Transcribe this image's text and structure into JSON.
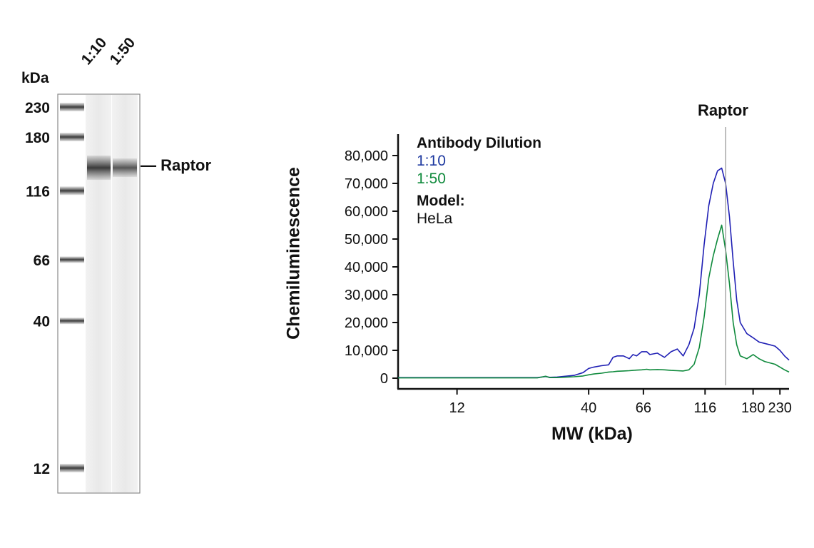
{
  "blot": {
    "kda_label": "kDa",
    "lane_labels": [
      "1:10",
      "1:50"
    ],
    "ladder": [
      {
        "label": "230",
        "kda": 230
      },
      {
        "label": "180",
        "kda": 180
      },
      {
        "label": "116",
        "kda": 116
      },
      {
        "label": "66",
        "kda": 66
      },
      {
        "label": "40",
        "kda": 40
      },
      {
        "label": "12",
        "kda": 12
      }
    ],
    "band_label": "— Raptor",
    "band_kda": 140,
    "colors": {
      "frame": "#888888",
      "band": "#444444"
    }
  },
  "chart_data": {
    "type": "line",
    "title": "",
    "xlabel": "MW (kDa)",
    "ylabel": "Chemiluminescence",
    "x_scale": "log",
    "xlim": [
      7,
      250
    ],
    "ylim": [
      0,
      80000
    ],
    "x_ticks": [
      {
        "label": "12",
        "value": 12
      },
      {
        "label": "40",
        "value": 40
      },
      {
        "label": "66",
        "value": 66
      },
      {
        "label": "116",
        "value": 116
      },
      {
        "label": "180",
        "value": 180
      },
      {
        "label": "230",
        "value": 230
      }
    ],
    "y_ticks": [
      {
        "label": "0",
        "value": 0
      },
      {
        "label": "10,000",
        "value": 10000
      },
      {
        "label": "20,000",
        "value": 20000
      },
      {
        "label": "30,000",
        "value": 30000
      },
      {
        "label": "40,000",
        "value": 40000
      },
      {
        "label": "50,000",
        "value": 50000
      },
      {
        "label": "60,000",
        "value": 60000
      },
      {
        "label": "70,000",
        "value": 70000
      },
      {
        "label": "80,000",
        "value": 80000
      }
    ],
    "marker": {
      "label": "Raptor",
      "x": 140
    },
    "legend": {
      "title": "Antibody Dilution",
      "model_title": "Model:",
      "model_value": "HeLa"
    },
    "series": [
      {
        "name": "1:10",
        "color": "#1f1fb4",
        "x": [
          7,
          10,
          15,
          20,
          25,
          27,
          28,
          30,
          35,
          38,
          40,
          42,
          45,
          48,
          50,
          52,
          55,
          58,
          60,
          62,
          65,
          68,
          70,
          75,
          80,
          85,
          90,
          95,
          100,
          105,
          110,
          115,
          120,
          125,
          130,
          135,
          140,
          145,
          150,
          155,
          160,
          170,
          180,
          190,
          200,
          210,
          220,
          230,
          240,
          250
        ],
        "y": [
          200,
          200,
          200,
          200,
          200,
          600,
          300,
          400,
          1000,
          2000,
          3500,
          4000,
          4500,
          4800,
          7500,
          8000,
          8000,
          7000,
          8500,
          8000,
          9500,
          9500,
          8500,
          9000,
          7500,
          9500,
          10500,
          8000,
          12000,
          18000,
          30000,
          48000,
          62000,
          70000,
          74500,
          75500,
          70000,
          58000,
          42000,
          28000,
          20000,
          16000,
          14500,
          13000,
          12500,
          12000,
          11500,
          10000,
          8000,
          6500
        ]
      },
      {
        "name": "1:50",
        "color": "#0f8a3c",
        "x": [
          7,
          10,
          15,
          20,
          25,
          27,
          28,
          30,
          35,
          38,
          40,
          42,
          45,
          48,
          50,
          52,
          55,
          58,
          60,
          62,
          65,
          68,
          70,
          75,
          80,
          85,
          90,
          95,
          100,
          105,
          110,
          115,
          120,
          125,
          130,
          135,
          140,
          145,
          150,
          155,
          160,
          170,
          180,
          190,
          200,
          210,
          220,
          230,
          240,
          250
        ],
        "y": [
          100,
          100,
          100,
          100,
          100,
          700,
          200,
          200,
          500,
          800,
          1200,
          1500,
          1800,
          2200,
          2300,
          2500,
          2600,
          2700,
          2800,
          2900,
          3000,
          3200,
          3000,
          3100,
          3000,
          2800,
          2700,
          2600,
          3000,
          5000,
          11000,
          22000,
          36000,
          44000,
          50000,
          55000,
          46000,
          34000,
          20000,
          12000,
          8000,
          7000,
          8500,
          7000,
          6000,
          5500,
          5000,
          4000,
          3000,
          2200
        ]
      }
    ]
  }
}
